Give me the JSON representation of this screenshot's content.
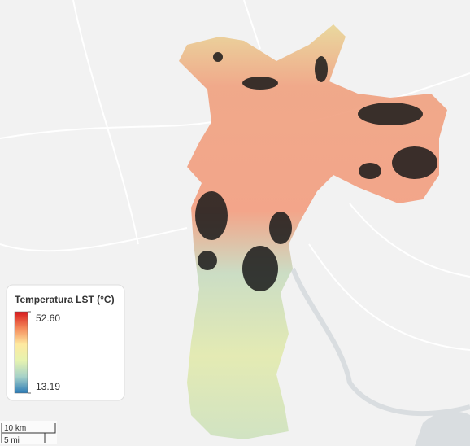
{
  "legend": {
    "title": "Temperatura LST (°C)",
    "max": {
      "value": 52.6,
      "label": "52.60"
    },
    "min": {
      "value": 13.19,
      "label": "13.19"
    },
    "colors": [
      "#d7191c",
      "#f4885a",
      "#fee9a0",
      "#e6f3b0",
      "#a5d1c8",
      "#2c7bb6"
    ]
  },
  "scale_bar": {
    "metric": "10 km",
    "imperial": "5 mi"
  }
}
